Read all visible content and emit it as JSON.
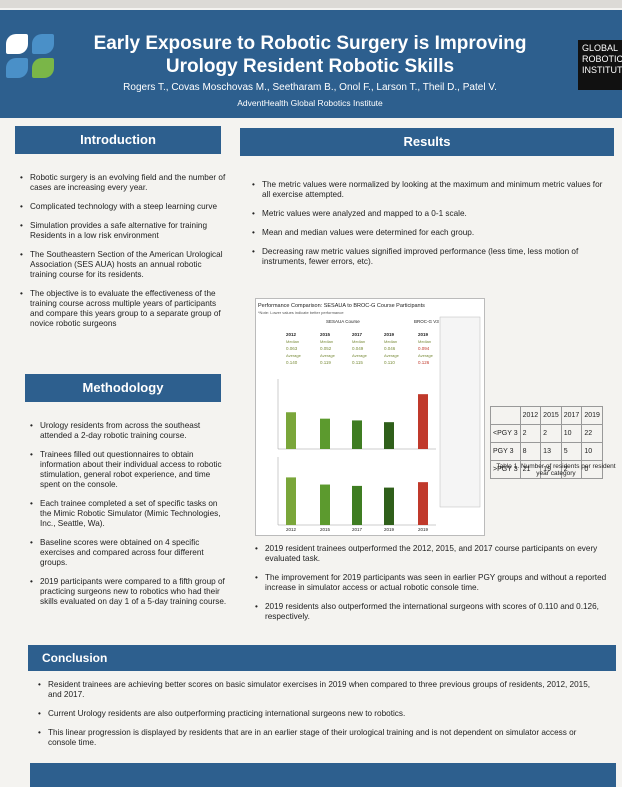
{
  "header": {
    "title_line1": "Early Exposure to Robotic Surgery is Improving",
    "title_line2": "Urology Resident Robotic Skills",
    "authors": "Rogers T., Covas Moschovas M., Seetharam B., Onol F., Larson T., Theil D., Patel V.",
    "affiliation": "AdventHealth Global Robotics Institute",
    "logo_right_line1": "GLOBAL",
    "logo_right_line2": "ROBOTICS",
    "logo_right_line3": "INSTITUT"
  },
  "introduction": {
    "heading": "Introduction",
    "bullets": [
      "Robotic surgery is an evolving field and the number of cases are increasing every year.",
      "Complicated technology with a steep learning curve",
      "Simulation provides a safe alternative for training Residents in a low risk environment",
      "The Southeastern Section of the American Urological Association (SES AUA) hosts an annual robotic training course for its residents.",
      "The objective is to evaluate the effectiveness of the training course across multiple years of participants and compare this years group to a separate group of novice robotic surgeons"
    ]
  },
  "methodology": {
    "heading": "Methodology",
    "bullets": [
      "Urology residents from across the southeast attended a 2-day robotic training course.",
      "Trainees filled out questionnaires to obtain information about their individual access to robotic stimulation, general robot experience, and time spent on the console.",
      "Each trainee completed a set of specific tasks on the Mimic Robotic Simulator (Mimic Technologies, Inc., Seattle, Wa).",
      "Baseline scores were obtained on 4 specific exercises and compared across four different groups.",
      "2019 participants were compared to a fifth group of practicing surgeons new to robotics who had their skills evaluated on day 1 of a 5-day training course."
    ]
  },
  "results": {
    "heading": "Results",
    "bullets_top": [
      "The metric values were normalized by looking at the  maximum and minimum metric values for all exercise  attempted.",
      "Metric values were analyzed and mapped to a 0-1 scale.",
      "Mean and median values were determined for each group.",
      "Decreasing raw metric values signified improved performance (less time, less motion of instruments, fewer errors, etc)."
    ],
    "bullets_bottom": [
      "2019 resident trainees outperformed the 2012, 2015, and 2017 course participants on every evaluated task.",
      "The improvement for 2019 participants was seen in earlier PGY groups and without a reported increase in simulator access or actual robotic console time.",
      "2019 residents also outperformed the international surgeons with scores of 0.110 and 0.126, respectively."
    ]
  },
  "chart_data": {
    "type": "bar",
    "title": "Performance Comparison: SESAUA to BROC-G Course Participants",
    "subtitle": "*Note: Lower values indicate better performance",
    "group_labels": [
      "SESAUA Course",
      "BROC-G V3 Day 1"
    ],
    "categories": [
      "2012",
      "2015",
      "2017",
      "2019",
      "2019"
    ],
    "series": [
      {
        "name": "Median",
        "values": [
          0.063,
          0.052,
          0.049,
          0.046,
          0.094
        ]
      },
      {
        "name": "Average",
        "values": [
          0.14,
          0.119,
          0.115,
          0.11,
          0.126
        ]
      }
    ],
    "colors": [
      "#7aa63a",
      "#5c9a2e",
      "#3f7d22",
      "#2f5f1a",
      "#c0392b"
    ]
  },
  "pgy_table": {
    "header": [
      "",
      "2012",
      "2015",
      "2017",
      "2019"
    ],
    "rows": [
      [
        "<PGY 3",
        "2",
        "2",
        "10",
        "22"
      ],
      [
        "PGY 3",
        "8",
        "13",
        "5",
        "10"
      ],
      [
        ">PGY 3",
        "21",
        "19",
        "2",
        "0"
      ]
    ],
    "caption": "Table 1. Number of residents per resident year category"
  },
  "conclusion": {
    "heading": "Conclusion",
    "bullets": [
      "Resident trainees are achieving better scores on basic simulator exercises in 2019 when compared to three previous groups of residents, 2012, 2015, and 2017.",
      "Current Urology residents are also outperforming practicing international surgeons new to robotics.",
      "This linear progression is displayed by residents that are in an earlier stage of their urological training and is not dependent on simulator access or console time."
    ]
  }
}
